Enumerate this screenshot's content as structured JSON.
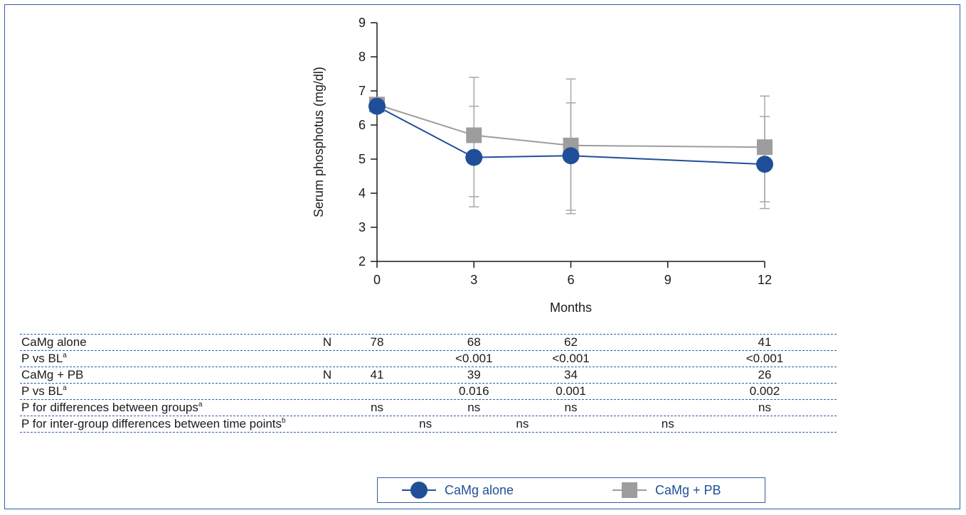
{
  "chart_data": {
    "type": "line",
    "xlabel": "Months",
    "ylabel": "Serum phosphotus (mg/dl)",
    "xlim": [
      0,
      12
    ],
    "ylim": [
      2,
      9
    ],
    "xticks": [
      "0",
      "3",
      "6",
      "9",
      "12"
    ],
    "yticks": [
      "2",
      "3",
      "4",
      "5",
      "6",
      "7",
      "8",
      "9"
    ],
    "grid": false,
    "legend_placement": "bottom",
    "series": [
      {
        "name": "CaMg alone",
        "color": "#1f4f98",
        "marker": "circle",
        "x": [
          0,
          3,
          6,
          12
        ],
        "y": [
          6.55,
          5.05,
          5.1,
          4.85
        ],
        "err_low": [
          null,
          3.6,
          3.4,
          3.55
        ],
        "err_high": [
          null,
          6.55,
          6.65,
          6.25
        ]
      },
      {
        "name": "CaMg + PB",
        "color": "#9d9d9d",
        "marker": "square",
        "x": [
          0,
          3,
          6,
          12
        ],
        "y": [
          6.6,
          5.7,
          5.4,
          5.35
        ],
        "err_low": [
          null,
          3.9,
          3.5,
          3.75
        ],
        "err_high": [
          null,
          7.4,
          7.35,
          6.85
        ]
      }
    ]
  },
  "stats_table": [
    {
      "label": "CaMg alone",
      "n_label": "N",
      "cells": [
        {
          "x": 0,
          "text": "78"
        },
        {
          "x": 3,
          "text": "68"
        },
        {
          "x": 6,
          "text": "62"
        },
        {
          "x": 12,
          "text": "41"
        }
      ]
    },
    {
      "label": "P vs BL",
      "sup": "a",
      "cells": [
        {
          "x": 3,
          "text": "<0.001"
        },
        {
          "x": 6,
          "text": "<0.001"
        },
        {
          "x": 12,
          "text": "<0.001"
        }
      ]
    },
    {
      "label": "CaMg + PB",
      "n_label": "N",
      "cells": [
        {
          "x": 0,
          "text": "41"
        },
        {
          "x": 3,
          "text": "39"
        },
        {
          "x": 6,
          "text": "34"
        },
        {
          "x": 12,
          "text": "26"
        }
      ]
    },
    {
      "label": "P vs BL",
      "sup": "a",
      "cells": [
        {
          "x": 3,
          "text": "0.016"
        },
        {
          "x": 6,
          "text": "0.001"
        },
        {
          "x": 12,
          "text": "0.002"
        }
      ]
    },
    {
      "label": "P for differences between groups",
      "sup": "a",
      "cells": [
        {
          "x": 0,
          "text": "ns"
        },
        {
          "x": 3,
          "text": "ns"
        },
        {
          "x": 6,
          "text": "ns"
        },
        {
          "x": 12,
          "text": "ns"
        }
      ]
    },
    {
      "label": "P for inter-group differences between time points",
      "sup": "b",
      "cells": [
        {
          "x": 1.5,
          "text": "ns"
        },
        {
          "x": 4.5,
          "text": "ns"
        },
        {
          "x": 9,
          "text": "ns"
        }
      ]
    }
  ],
  "legend": [
    {
      "label": "CaMg alone",
      "color": "#1f4f98",
      "marker": "circle"
    },
    {
      "label": "CaMg + PB",
      "color": "#9d9d9d",
      "marker": "square"
    }
  ]
}
